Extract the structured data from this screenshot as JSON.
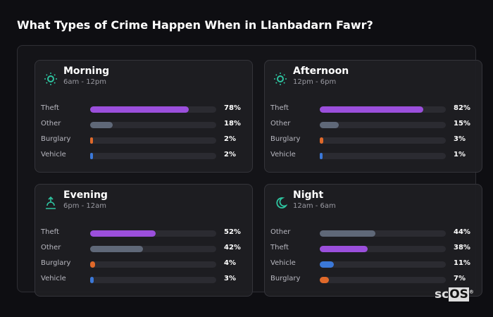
{
  "title": "What Types of Crime Happen When in Llanbadarn Fawr?",
  "colors": {
    "Theft": "#9b4fdc",
    "Other": "#5f6878",
    "Burglary": "#e0692a",
    "Vehicle": "#3b78d8",
    "icon": "#2ec4a0"
  },
  "chart_data": [
    {
      "type": "bar",
      "orientation": "horizontal",
      "title": "Morning",
      "subtitle": "6am - 12pm",
      "icon": "sun-icon",
      "unit": "%",
      "categories": [
        "Theft",
        "Other",
        "Burglary",
        "Vehicle"
      ],
      "values": [
        78,
        18,
        2,
        2
      ],
      "labels": [
        "78%",
        "18%",
        "2%",
        "2%"
      ]
    },
    {
      "type": "bar",
      "orientation": "horizontal",
      "title": "Afternoon",
      "subtitle": "12pm - 6pm",
      "icon": "sun-icon",
      "unit": "%",
      "categories": [
        "Theft",
        "Other",
        "Burglary",
        "Vehicle"
      ],
      "values": [
        82,
        15,
        3,
        1
      ],
      "labels": [
        "82%",
        "15%",
        "3%",
        "1%"
      ]
    },
    {
      "type": "bar",
      "orientation": "horizontal",
      "title": "Evening",
      "subtitle": "6pm - 12am",
      "icon": "sunset-icon",
      "unit": "%",
      "categories": [
        "Theft",
        "Other",
        "Burglary",
        "Vehicle"
      ],
      "values": [
        52,
        42,
        4,
        3
      ],
      "labels": [
        "52%",
        "42%",
        "4%",
        "3%"
      ]
    },
    {
      "type": "bar",
      "orientation": "horizontal",
      "title": "Night",
      "subtitle": "12am - 6am",
      "icon": "moon-icon",
      "unit": "%",
      "categories": [
        "Other",
        "Theft",
        "Vehicle",
        "Burglary"
      ],
      "values": [
        44,
        38,
        11,
        7
      ],
      "labels": [
        "44%",
        "38%",
        "11%",
        "7%"
      ]
    }
  ],
  "logo": {
    "prefix": "sc",
    "boxed": "OS",
    "mark": "®"
  }
}
